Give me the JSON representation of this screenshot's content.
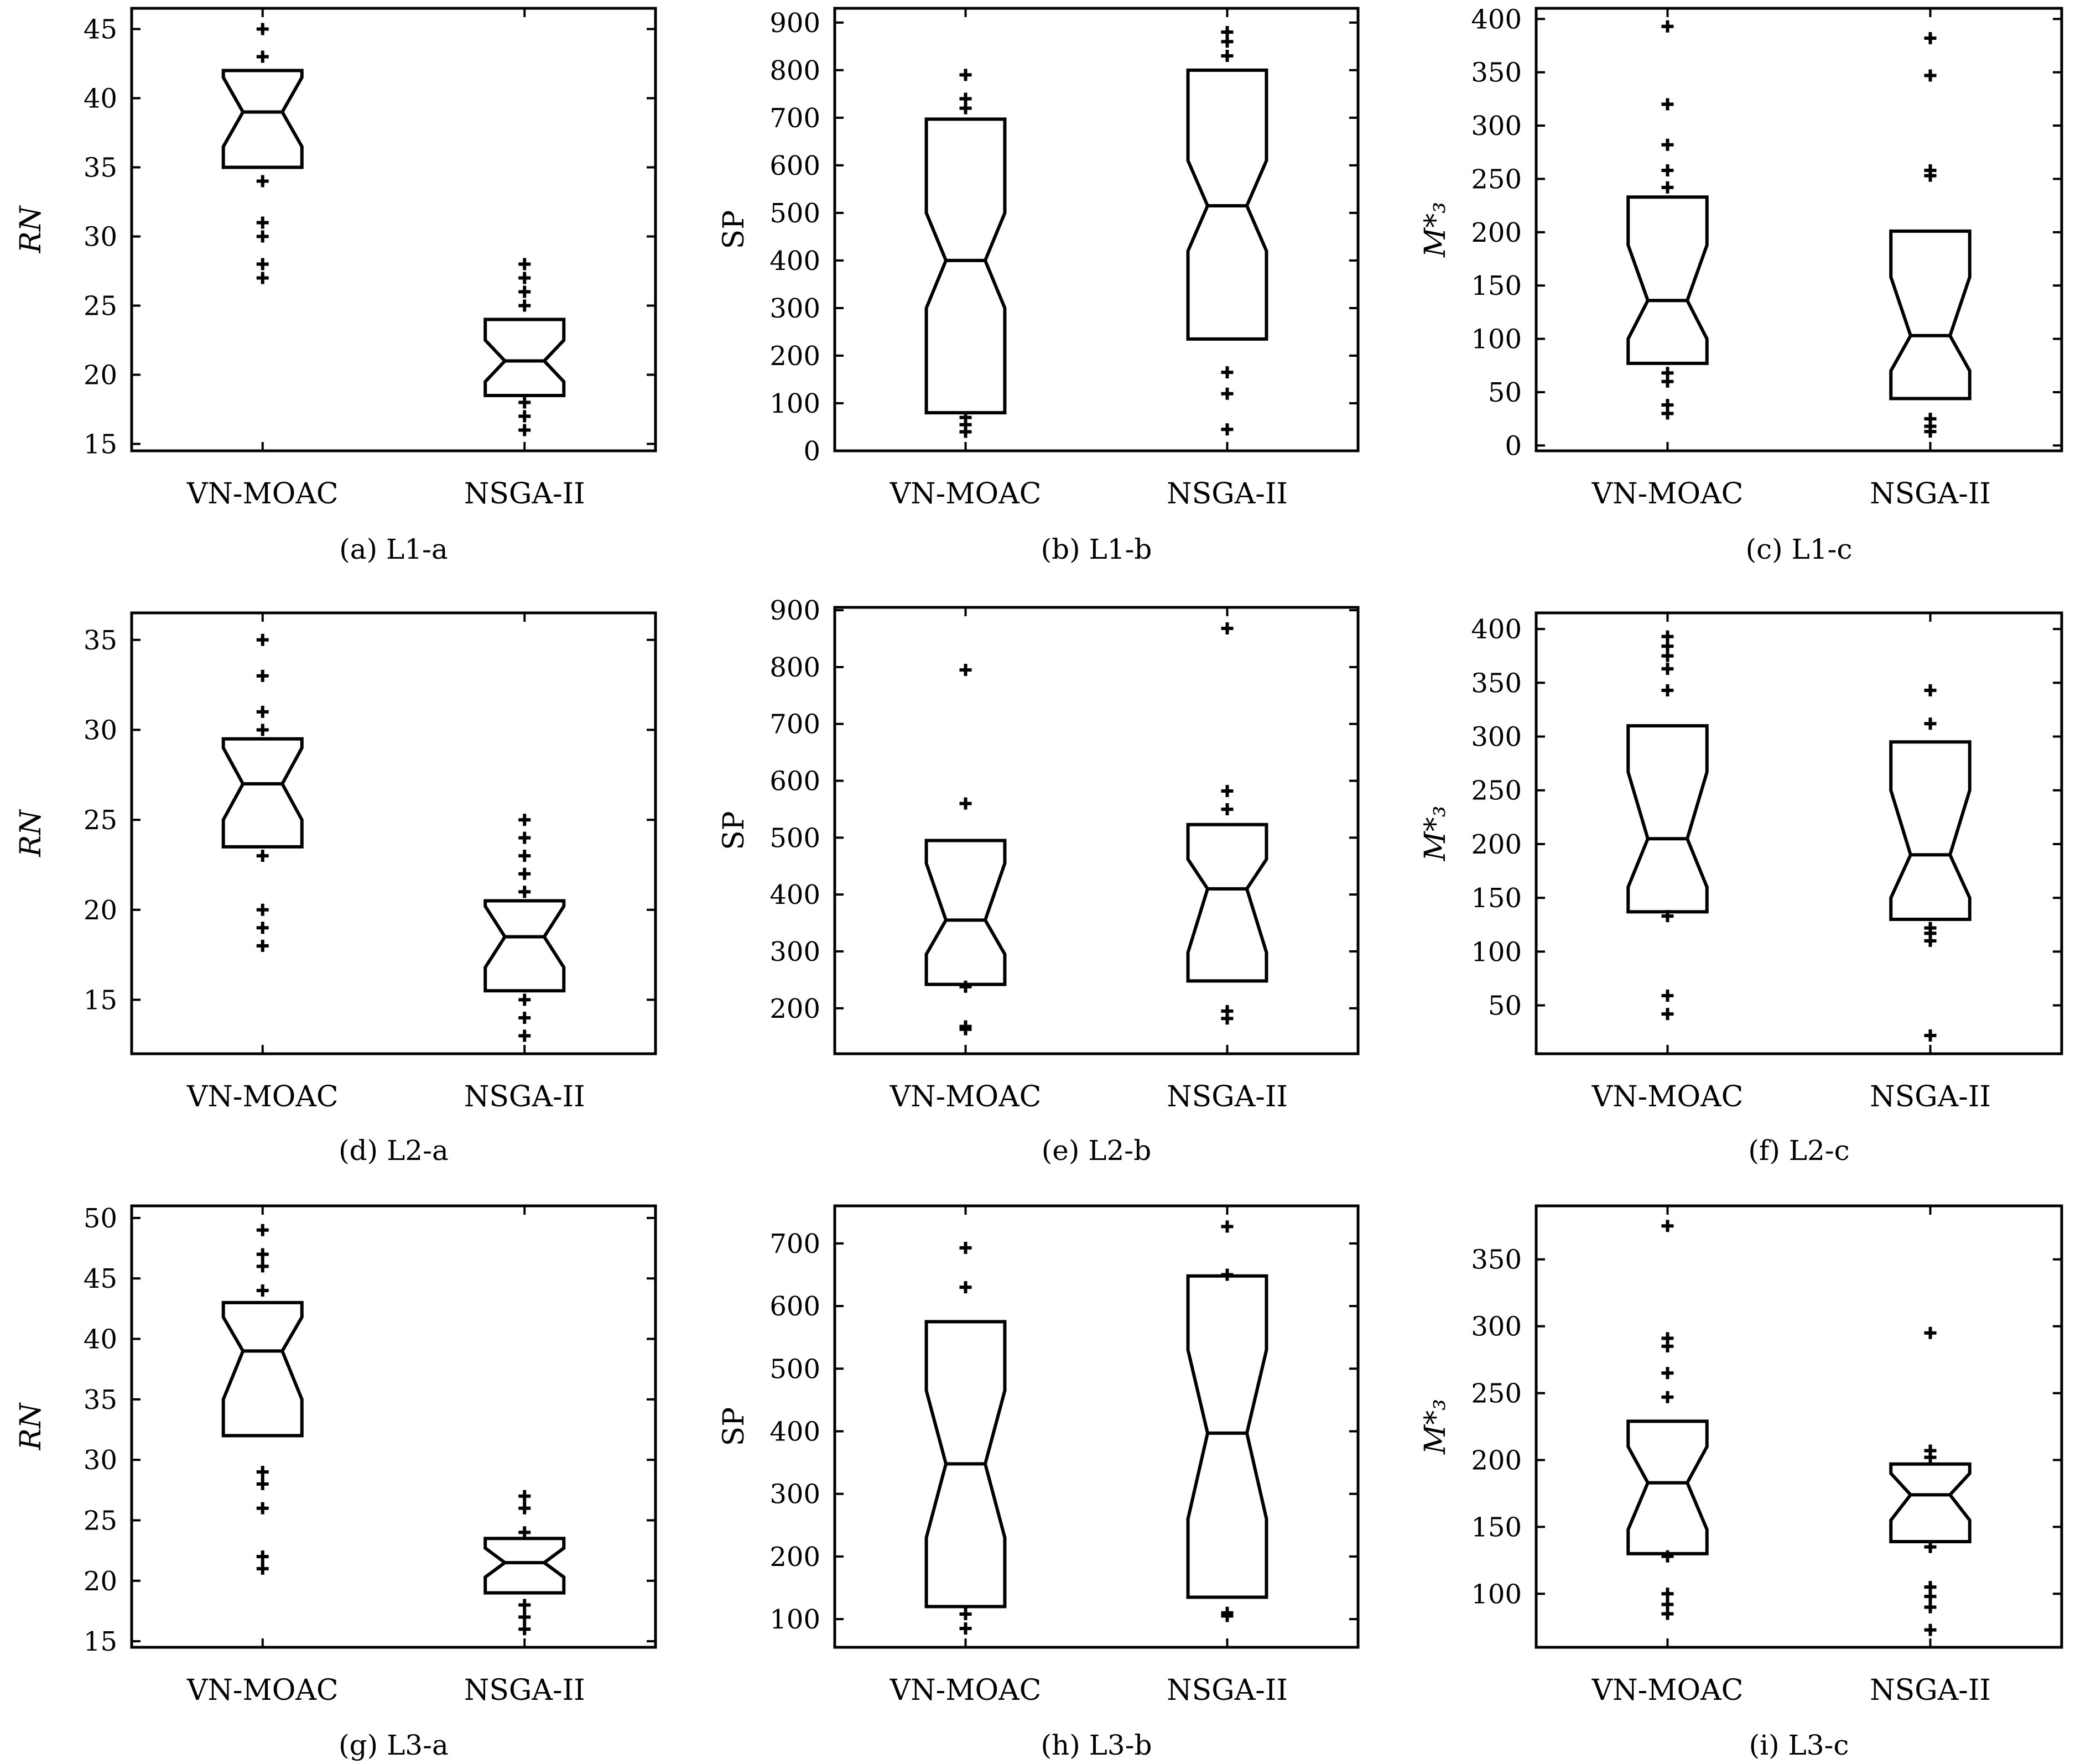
{
  "chart_data": [
    {
      "type": "boxplot",
      "caption": "(a) L1-a",
      "ylabel": "RN",
      "ylabel_style": "italic",
      "categories": [
        "VN-MOAC",
        "NSGA-II"
      ],
      "ylim": [
        14.5,
        46.5
      ],
      "yticks": [
        15,
        20,
        25,
        30,
        35,
        40,
        45
      ],
      "boxes": [
        {
          "q1": 35,
          "median": 39,
          "q3": 42,
          "notch_low": 36.5,
          "notch_high": 41.5,
          "outliers": [
            45,
            43,
            34,
            31,
            30,
            28,
            27
          ]
        },
        {
          "q1": 18.5,
          "median": 21,
          "q3": 24,
          "notch_low": 19.5,
          "notch_high": 22.5,
          "outliers": [
            28,
            27,
            26,
            25,
            18,
            17,
            16
          ]
        }
      ]
    },
    {
      "type": "boxplot",
      "caption": "(b) L1-b",
      "ylabel": "SP",
      "ylabel_style": "normal",
      "categories": [
        "VN-MOAC",
        "NSGA-II"
      ],
      "ylim": [
        0,
        930
      ],
      "yticks": [
        0,
        100,
        200,
        300,
        400,
        500,
        600,
        700,
        800,
        900
      ],
      "boxes": [
        {
          "q1": 80,
          "median": 400,
          "q3": 697,
          "notch_low": 300,
          "notch_high": 500,
          "outliers": [
            790,
            740,
            720,
            70,
            55,
            40
          ]
        },
        {
          "q1": 235,
          "median": 515,
          "q3": 800,
          "notch_low": 420,
          "notch_high": 610,
          "outliers": [
            880,
            860,
            830,
            165,
            120,
            45
          ]
        }
      ]
    },
    {
      "type": "boxplot",
      "caption": "(c) L1-c",
      "ylabel": "M*₃",
      "ylabel_style": "italic",
      "categories": [
        "VN-MOAC",
        "NSGA-II"
      ],
      "ylim": [
        -5,
        410
      ],
      "yticks": [
        0,
        50,
        100,
        150,
        200,
        250,
        300,
        350,
        400
      ],
      "boxes": [
        {
          "q1": 77,
          "median": 136,
          "q3": 233,
          "notch_low": 100,
          "notch_high": 188,
          "outliers": [
            393,
            320,
            282,
            258,
            242,
            68,
            60,
            38,
            30
          ]
        },
        {
          "q1": 44,
          "median": 103,
          "q3": 201,
          "notch_low": 70,
          "notch_high": 158,
          "outliers": [
            382,
            347,
            258,
            253,
            25,
            18,
            13
          ]
        }
      ]
    },
    {
      "type": "boxplot",
      "caption": "(d) L2-a",
      "ylabel": "RN",
      "ylabel_style": "italic",
      "categories": [
        "VN-MOAC",
        "NSGA-II"
      ],
      "ylim": [
        12,
        36.5
      ],
      "yticks": [
        15,
        20,
        25,
        30,
        35
      ],
      "boxes": [
        {
          "q1": 23.5,
          "median": 27,
          "q3": 29.5,
          "notch_low": 25,
          "notch_high": 29,
          "outliers": [
            35,
            33,
            31,
            30,
            23,
            20,
            19,
            18
          ]
        },
        {
          "q1": 15.5,
          "median": 18.5,
          "q3": 20.5,
          "notch_low": 16.8,
          "notch_high": 20.2,
          "outliers": [
            25,
            24,
            23,
            22,
            21,
            15,
            14,
            13
          ]
        }
      ]
    },
    {
      "type": "boxplot",
      "caption": "(e) L2-b",
      "ylabel": "SP",
      "ylabel_style": "normal",
      "categories": [
        "VN-MOAC",
        "NSGA-II"
      ],
      "ylim": [
        120,
        905
      ],
      "yticks": [
        200,
        300,
        400,
        500,
        600,
        700,
        800,
        900
      ],
      "boxes": [
        {
          "q1": 242,
          "median": 355,
          "q3": 495,
          "notch_low": 295,
          "notch_high": 455,
          "outliers": [
            795,
            560,
            238,
            168,
            163
          ]
        },
        {
          "q1": 248,
          "median": 410,
          "q3": 523,
          "notch_low": 298,
          "notch_high": 462,
          "outliers": [
            868,
            582,
            550,
            195,
            182
          ]
        }
      ]
    },
    {
      "type": "boxplot",
      "caption": "(f) L2-c",
      "ylabel": "M*₃",
      "ylabel_style": "italic",
      "categories": [
        "VN-MOAC",
        "NSGA-II"
      ],
      "ylim": [
        5,
        415
      ],
      "yticks": [
        50,
        100,
        150,
        200,
        250,
        300,
        350,
        400
      ],
      "boxes": [
        {
          "q1": 137,
          "median": 205,
          "q3": 310,
          "notch_low": 160,
          "notch_high": 267,
          "outliers": [
            393,
            384,
            375,
            363,
            343,
            133,
            59,
            42
          ]
        },
        {
          "q1": 130,
          "median": 190,
          "q3": 295,
          "notch_low": 150,
          "notch_high": 250,
          "outliers": [
            343,
            312,
            122,
            117,
            110,
            22
          ]
        }
      ]
    },
    {
      "type": "boxplot",
      "caption": "(g) L3-a",
      "ylabel": "RN",
      "ylabel_style": "italic",
      "categories": [
        "VN-MOAC",
        "NSGA-II"
      ],
      "ylim": [
        14.5,
        51
      ],
      "yticks": [
        15,
        20,
        25,
        30,
        35,
        40,
        45,
        50
      ],
      "boxes": [
        {
          "q1": 32,
          "median": 39,
          "q3": 43,
          "notch_low": 35,
          "notch_high": 41.8,
          "outliers": [
            49,
            47,
            46,
            44,
            29,
            28,
            26,
            22,
            21
          ]
        },
        {
          "q1": 19,
          "median": 21.5,
          "q3": 23.5,
          "notch_low": 20.3,
          "notch_high": 22.7,
          "outliers": [
            27,
            26,
            24,
            18,
            17,
            16
          ]
        }
      ]
    },
    {
      "type": "boxplot",
      "caption": "(h) L3-b",
      "ylabel": "SP",
      "ylabel_style": "normal",
      "categories": [
        "VN-MOAC",
        "NSGA-II"
      ],
      "ylim": [
        55,
        760
      ],
      "yticks": [
        100,
        200,
        300,
        400,
        500,
        600,
        700
      ],
      "boxes": [
        {
          "q1": 120,
          "median": 348,
          "q3": 575,
          "notch_low": 230,
          "notch_high": 465,
          "outliers": [
            693,
            630,
            108,
            85
          ]
        },
        {
          "q1": 135,
          "median": 397,
          "q3": 648,
          "notch_low": 260,
          "notch_high": 530,
          "outliers": [
            727,
            650,
            110,
            105
          ]
        }
      ]
    },
    {
      "type": "boxplot",
      "caption": "(i) L3-c",
      "ylabel": "M*₃",
      "ylabel_style": "italic",
      "categories": [
        "VN-MOAC",
        "NSGA-II"
      ],
      "ylim": [
        60,
        390
      ],
      "yticks": [
        100,
        150,
        200,
        250,
        300,
        350
      ],
      "boxes": [
        {
          "q1": 130,
          "median": 183,
          "q3": 229,
          "notch_low": 148,
          "notch_high": 210,
          "outliers": [
            375,
            291,
            285,
            265,
            247,
            128,
            100,
            92,
            85
          ]
        },
        {
          "q1": 139,
          "median": 174,
          "q3": 197,
          "notch_low": 155,
          "notch_high": 190,
          "outliers": [
            295,
            207,
            202,
            135,
            105,
            98,
            90,
            73
          ]
        }
      ]
    }
  ]
}
